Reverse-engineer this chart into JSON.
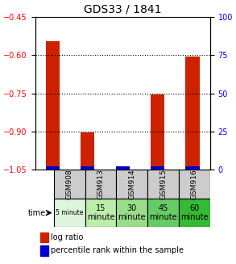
{
  "title": "GDS33 / 1841",
  "samples": [
    "GSM908",
    "GSM913",
    "GSM914",
    "GSM915",
    "GSM916"
  ],
  "time_labels": [
    "5 minute",
    "15\nminute",
    "30\nminute",
    "45\nminute",
    "60\nminute"
  ],
  "log_ratios": [
    -0.545,
    -0.905,
    -1.05,
    -0.755,
    -0.605
  ],
  "percentile_ranks": [
    3,
    3,
    0,
    2,
    3
  ],
  "ylim_left": [
    -1.05,
    -0.45
  ],
  "ylim_right": [
    0,
    100
  ],
  "yticks_left": [
    -1.05,
    -0.9,
    -0.75,
    -0.6,
    -0.45
  ],
  "yticks_right": [
    0,
    25,
    50,
    75,
    100
  ],
  "bar_bottom": -1.05,
  "bar_width": 0.4,
  "red_color": "#cc2200",
  "blue_color": "#0000cc",
  "bg_color": "#ffffff",
  "sample_bg": "#cccccc",
  "time_bg_colors": [
    "#ddf5dd",
    "#bbeeaa",
    "#99dd88",
    "#66cc66",
    "#33bb33"
  ],
  "time_fontsizes": [
    5.5,
    7,
    7,
    7,
    7
  ],
  "legend_labels": [
    "log ratio",
    "percentile rank within the sample"
  ],
  "grid_yticks": [
    -0.6,
    -0.75,
    -0.9
  ]
}
